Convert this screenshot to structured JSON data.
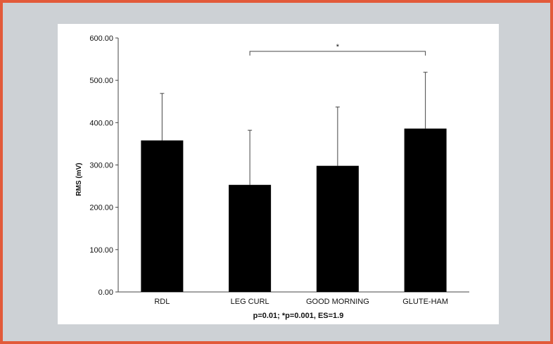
{
  "frame": {
    "border_color": "#e25a3a",
    "background_color": "#cdd1d5"
  },
  "chart_data": {
    "type": "bar",
    "categories": [
      "RDL",
      "LEG CURL",
      "GOOD MORNING",
      "GLUTE-HAM"
    ],
    "values": [
      358,
      253,
      298,
      386
    ],
    "error_upper": [
      469,
      382,
      437,
      519
    ],
    "ylabel": "RMS (mV)",
    "xlabel": "",
    "ylim": [
      0,
      600
    ],
    "yticks": [
      "0.00",
      "100.00",
      "200.00",
      "300.00",
      "400.00",
      "500.00",
      "600.00"
    ],
    "bar_color": "#000000",
    "grid": false,
    "significance": {
      "from": "LEG CURL",
      "to": "GLUTE-HAM",
      "marker": "*"
    },
    "footnote": "p=0.01; *p=0.001, ES=1.9"
  }
}
